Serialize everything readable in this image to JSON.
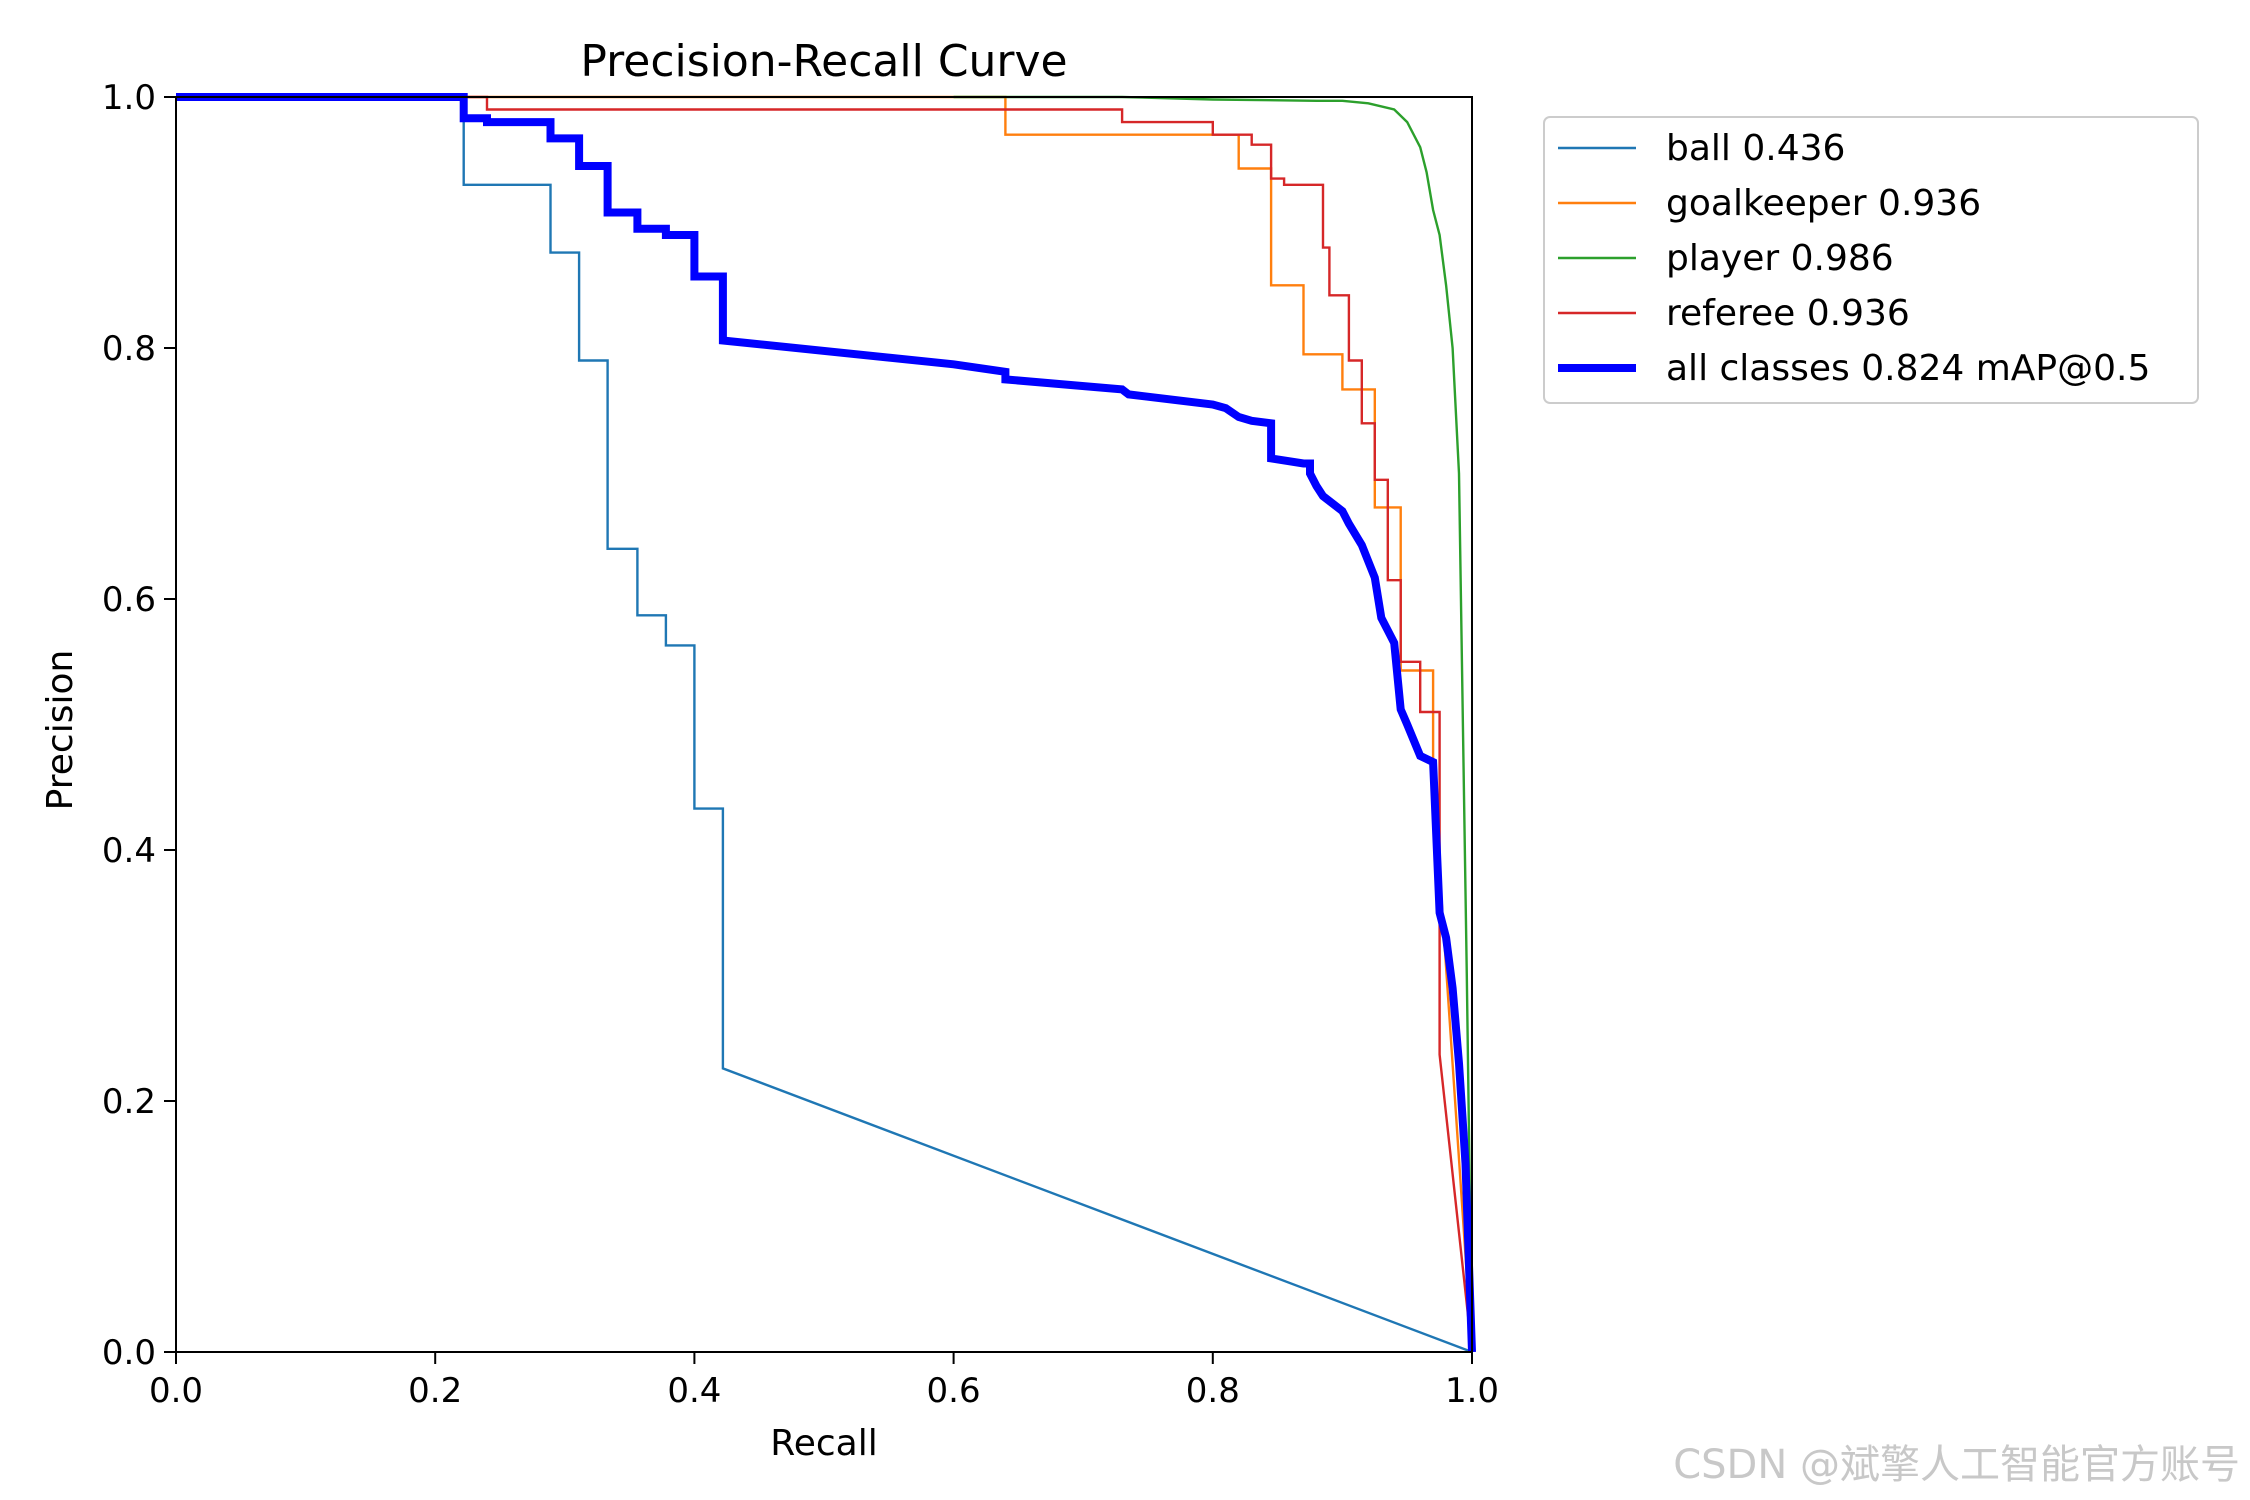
{
  "chart_data": {
    "type": "line",
    "title": "Precision-Recall Curve",
    "xlabel": "Recall",
    "ylabel": "Precision",
    "xlim": [
      0,
      1
    ],
    "ylim": [
      0,
      1
    ],
    "xticks": [
      "0.0",
      "0.2",
      "0.4",
      "0.6",
      "0.8",
      "1.0"
    ],
    "yticks": [
      "0.0",
      "0.2",
      "0.4",
      "0.6",
      "0.8",
      "1.0"
    ],
    "grid": false,
    "legend_position": "outside-top-right",
    "series": [
      {
        "name": "ball 0.436",
        "color": "#1f77b4",
        "x": [
          0,
          0.222,
          0.222,
          0.289,
          0.289,
          0.311,
          0.311,
          0.333,
          0.333,
          0.356,
          0.356,
          0.378,
          0.378,
          0.4,
          0.4,
          0.422,
          0.422,
          1.0
        ],
        "y": [
          1.0,
          1.0,
          0.93,
          0.93,
          0.876,
          0.876,
          0.79,
          0.79,
          0.64,
          0.64,
          0.587,
          0.587,
          0.563,
          0.563,
          0.433,
          0.433,
          0.226,
          0.0
        ]
      },
      {
        "name": "goalkeeper 0.936",
        "color": "#ff7f0e",
        "x": [
          0,
          0.64,
          0.64,
          0.82,
          0.82,
          0.845,
          0.845,
          0.87,
          0.87,
          0.9,
          0.9,
          0.925,
          0.925,
          0.945,
          0.945,
          0.97,
          0.97,
          0.97,
          1.0
        ],
        "y": [
          1.0,
          1.0,
          0.97,
          0.97,
          0.943,
          0.943,
          0.85,
          0.85,
          0.795,
          0.795,
          0.767,
          0.767,
          0.673,
          0.673,
          0.543,
          0.543,
          0.46,
          0.46,
          0.0
        ]
      },
      {
        "name": "player 0.986",
        "color": "#2ca02c",
        "x": [
          0.6,
          0.73,
          0.8,
          0.88,
          0.9,
          0.92,
          0.94,
          0.95,
          0.96,
          0.965,
          0.97,
          0.975,
          0.98,
          0.985,
          0.99,
          0.993,
          0.996,
          0.998,
          1.0
        ],
        "y": [
          1.0,
          1.0,
          0.998,
          0.997,
          0.997,
          0.995,
          0.99,
          0.98,
          0.96,
          0.94,
          0.91,
          0.89,
          0.85,
          0.8,
          0.7,
          0.5,
          0.3,
          0.15,
          0.0
        ]
      },
      {
        "name": "referee 0.936",
        "color": "#d62728",
        "x": [
          0,
          0.24,
          0.24,
          0.73,
          0.73,
          0.8,
          0.8,
          0.83,
          0.83,
          0.845,
          0.845,
          0.855,
          0.855,
          0.885,
          0.885,
          0.89,
          0.89,
          0.905,
          0.905,
          0.915,
          0.915,
          0.925,
          0.925,
          0.935,
          0.935,
          0.945,
          0.945,
          0.96,
          0.96,
          0.975,
          0.975,
          1.0
        ],
        "y": [
          1.0,
          1.0,
          0.99,
          0.99,
          0.98,
          0.98,
          0.97,
          0.97,
          0.962,
          0.962,
          0.935,
          0.935,
          0.93,
          0.93,
          0.88,
          0.88,
          0.842,
          0.842,
          0.79,
          0.79,
          0.74,
          0.74,
          0.695,
          0.695,
          0.615,
          0.615,
          0.55,
          0.55,
          0.51,
          0.51,
          0.237,
          0.0
        ]
      },
      {
        "name": "all classes 0.824 mAP@0.5",
        "color": "#0000ff",
        "x": [
          0,
          0.222,
          0.222,
          0.24,
          0.24,
          0.289,
          0.289,
          0.311,
          0.311,
          0.333,
          0.333,
          0.356,
          0.356,
          0.378,
          0.378,
          0.4,
          0.4,
          0.422,
          0.422,
          0.6,
          0.64,
          0.64,
          0.73,
          0.735,
          0.8,
          0.81,
          0.82,
          0.83,
          0.845,
          0.845,
          0.87,
          0.875,
          0.875,
          0.88,
          0.885,
          0.9,
          0.905,
          0.915,
          0.925,
          0.93,
          0.935,
          0.94,
          0.945,
          0.95,
          0.96,
          0.97,
          0.975,
          0.98,
          0.985,
          0.99,
          0.995,
          1.0
        ],
        "y": [
          1.0,
          1.0,
          0.983,
          0.983,
          0.98,
          0.98,
          0.967,
          0.967,
          0.945,
          0.945,
          0.908,
          0.908,
          0.895,
          0.895,
          0.89,
          0.89,
          0.857,
          0.857,
          0.806,
          0.787,
          0.781,
          0.775,
          0.767,
          0.763,
          0.755,
          0.752,
          0.745,
          0.742,
          0.74,
          0.712,
          0.708,
          0.708,
          0.7,
          0.69,
          0.682,
          0.67,
          0.66,
          0.643,
          0.617,
          0.585,
          0.575,
          0.565,
          0.512,
          0.5,
          0.475,
          0.47,
          0.35,
          0.33,
          0.29,
          0.23,
          0.15,
          0.0
        ]
      }
    ]
  },
  "watermark": "CSDN @斌擎人工智能官方账号"
}
